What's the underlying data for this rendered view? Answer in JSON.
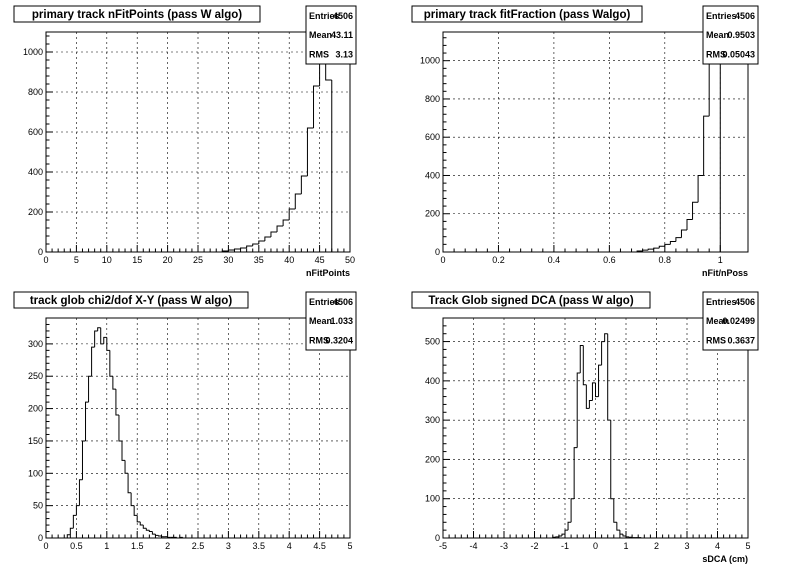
{
  "chart_data": [
    {
      "type": "histogram",
      "title": "primary track nFitPoints (pass W algo)",
      "xlabel": "nFitPoints",
      "ylabel": "",
      "xlim": [
        0,
        50
      ],
      "ylim": [
        0,
        1100
      ],
      "xticks": [
        0,
        5,
        10,
        15,
        20,
        25,
        30,
        35,
        40,
        45,
        50
      ],
      "xtick_labels": [
        "0",
        "5",
        "10",
        "15",
        "20",
        "25",
        "30",
        "35",
        "40",
        "45",
        "50"
      ],
      "yticks": [
        0,
        200,
        400,
        600,
        800,
        1000
      ],
      "ytick_labels": [
        "0",
        "200",
        "400",
        "600",
        "800",
        "1000"
      ],
      "bin_edges": [
        0,
        1,
        2,
        3,
        4,
        5,
        6,
        7,
        8,
        9,
        10,
        11,
        12,
        13,
        14,
        15,
        16,
        17,
        18,
        19,
        20,
        21,
        22,
        23,
        24,
        25,
        26,
        27,
        28,
        29,
        30,
        31,
        32,
        33,
        34,
        35,
        36,
        37,
        38,
        39,
        40,
        41,
        42,
        43,
        44,
        45,
        46,
        47,
        48,
        49,
        50
      ],
      "values": [
        0,
        0,
        0,
        0,
        0,
        0,
        0,
        0,
        0,
        0,
        0,
        0,
        0,
        0,
        0,
        0,
        0,
        0,
        0,
        0,
        0,
        0,
        0,
        0,
        0,
        0,
        0,
        0,
        0,
        5,
        10,
        15,
        20,
        30,
        40,
        55,
        75,
        100,
        130,
        160,
        215,
        290,
        380,
        620,
        830,
        1020,
        860,
        0,
        0,
        0
      ],
      "stats": [
        {
          "label": "Entries",
          "value": "4506"
        },
        {
          "label": "Mean",
          "value": "43.11"
        },
        {
          "label": "RMS",
          "value": "3.13"
        }
      ]
    },
    {
      "type": "histogram",
      "title": "primary track fitFraction (pass Walgo)",
      "xlabel": "nFit/nPoss",
      "ylabel": "",
      "xlim": [
        0,
        1.1
      ],
      "ylim": [
        0,
        1150
      ],
      "xticks": [
        0,
        0.2,
        0.4,
        0.6,
        0.8,
        1.0
      ],
      "xtick_labels": [
        "0",
        "0.2",
        "0.4",
        "0.6",
        "0.8",
        "1"
      ],
      "yticks": [
        0,
        200,
        400,
        600,
        800,
        1000
      ],
      "ytick_labels": [
        "0",
        "200",
        "400",
        "600",
        "800",
        "1000"
      ],
      "bin_edges": [
        0.7,
        0.72,
        0.74,
        0.76,
        0.78,
        0.8,
        0.82,
        0.84,
        0.86,
        0.88,
        0.9,
        0.92,
        0.94,
        0.96,
        0.98,
        1.0,
        1.02
      ],
      "values": [
        5,
        10,
        15,
        20,
        30,
        40,
        55,
        75,
        115,
        170,
        260,
        400,
        710,
        1000,
        1150,
        0
      ],
      "stats": [
        {
          "label": "Entries",
          "value": "4506"
        },
        {
          "label": "Mean",
          "value": "0.9503"
        },
        {
          "label": "RMS",
          "value": "0.05043"
        }
      ]
    },
    {
      "type": "histogram",
      "title": "track glob chi2/dof X-Y (pass W algo)",
      "xlabel": "",
      "ylabel": "",
      "xlim": [
        0,
        5
      ],
      "ylim": [
        0,
        340
      ],
      "xticks": [
        0,
        0.5,
        1,
        1.5,
        2,
        2.5,
        3,
        3.5,
        4,
        4.5,
        5
      ],
      "xtick_labels": [
        "0",
        "0.5",
        "1",
        "1.5",
        "2",
        "2.5",
        "3",
        "3.5",
        "4",
        "4.5",
        "5"
      ],
      "yticks": [
        0,
        50,
        100,
        150,
        200,
        250,
        300
      ],
      "ytick_labels": [
        "0",
        "50",
        "100",
        "150",
        "200",
        "250",
        "300"
      ],
      "bin_edges": [
        0.35,
        0.4,
        0.45,
        0.5,
        0.55,
        0.6,
        0.65,
        0.7,
        0.75,
        0.8,
        0.85,
        0.9,
        0.95,
        1.0,
        1.05,
        1.1,
        1.15,
        1.2,
        1.25,
        1.3,
        1.35,
        1.4,
        1.45,
        1.5,
        1.55,
        1.6,
        1.65,
        1.7,
        1.75,
        1.8,
        1.85,
        1.9,
        1.95,
        2.0,
        2.05,
        2.1,
        2.15,
        2.2,
        2.25,
        2.3,
        2.35,
        2.4
      ],
      "values": [
        5,
        15,
        35,
        50,
        90,
        150,
        210,
        250,
        295,
        320,
        325,
        300,
        310,
        290,
        250,
        230,
        190,
        150,
        120,
        100,
        70,
        50,
        35,
        25,
        20,
        15,
        12,
        10,
        6,
        4,
        3,
        2,
        2,
        1,
        1,
        1,
        0,
        1,
        0,
        0,
        0
      ],
      "stats": [
        {
          "label": "Entries",
          "value": "4506"
        },
        {
          "label": "Mean",
          "value": "1.033"
        },
        {
          "label": "RMS",
          "value": "0.3204"
        }
      ]
    },
    {
      "type": "histogram",
      "title": "Track Glob signed DCA (pass W algo)",
      "xlabel": "sDCA (cm)",
      "ylabel": "",
      "xlim": [
        -5,
        5
      ],
      "ylim": [
        0,
        560
      ],
      "xticks": [
        -5,
        -4,
        -3,
        -2,
        -1,
        0,
        1,
        2,
        3,
        4,
        5
      ],
      "xtick_labels": [
        "-5",
        "-4",
        "-3",
        "-2",
        "-1",
        "0",
        "1",
        "2",
        "3",
        "4",
        "5"
      ],
      "yticks": [
        0,
        100,
        200,
        300,
        400,
        500
      ],
      "ytick_labels": [
        "0",
        "100",
        "200",
        "300",
        "400",
        "500"
      ],
      "bin_edges": [
        -1.4,
        -1.3,
        -1.2,
        -1.1,
        -1.0,
        -0.9,
        -0.8,
        -0.7,
        -0.6,
        -0.5,
        -0.4,
        -0.3,
        -0.2,
        -0.1,
        0.0,
        0.1,
        0.2,
        0.3,
        0.4,
        0.5,
        0.6,
        0.7,
        0.8,
        0.9,
        1.0,
        1.1,
        1.2,
        1.3,
        1.4,
        1.5,
        1.6,
        1.7
      ],
      "values": [
        2,
        3,
        5,
        10,
        20,
        40,
        100,
        230,
        420,
        490,
        390,
        330,
        350,
        395,
        360,
        440,
        500,
        520,
        300,
        100,
        40,
        20,
        10,
        5,
        3,
        2,
        1,
        1,
        1,
        0,
        0
      ],
      "stats": [
        {
          "label": "Entries",
          "value": "4506"
        },
        {
          "label": "Mean",
          "value": "0.02499"
        },
        {
          "label": "RMS",
          "value": "0.3637"
        }
      ]
    }
  ]
}
